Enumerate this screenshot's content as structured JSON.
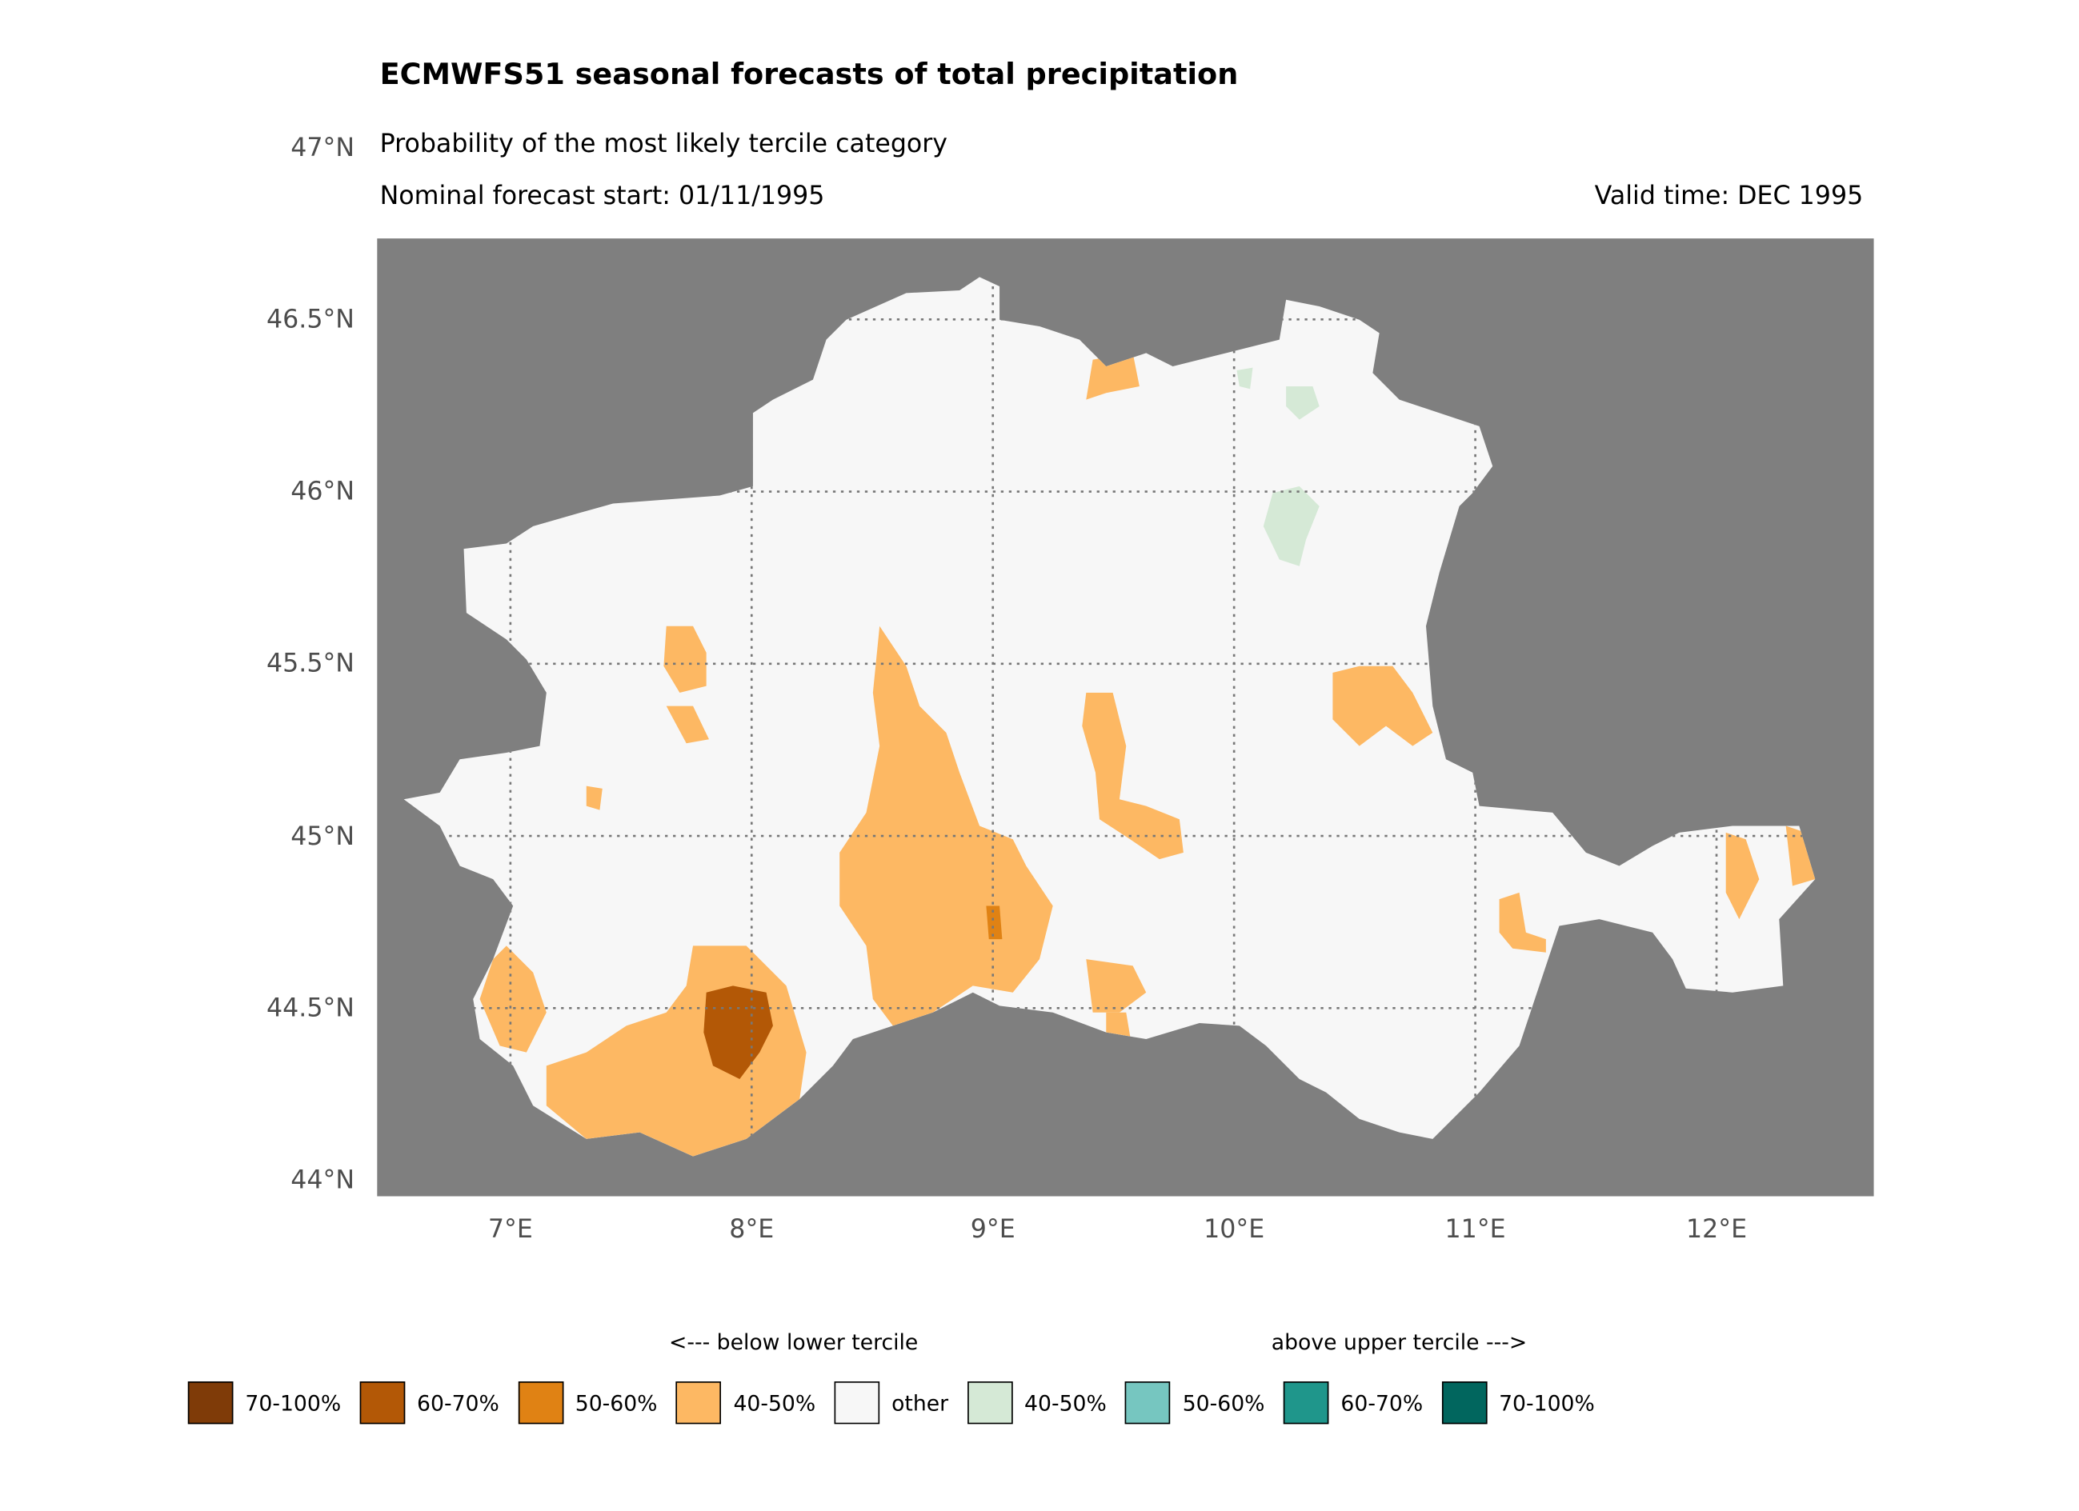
{
  "title": "ECMWFS51 seasonal forecasts of total precipitation",
  "subtitle": "Probability of the most likely tercile category",
  "forecast_start": "Nominal forecast start: 01/11/1995",
  "valid_time": "Valid time: DEC 1995",
  "axes": {
    "lat_ticks": [
      "47°N",
      "46.5°N",
      "46°N",
      "45.5°N",
      "45°N",
      "44.5°N",
      "44°N"
    ],
    "lon_ticks": [
      "7°E",
      "8°E",
      "9°E",
      "10°E",
      "11°E",
      "12°E"
    ]
  },
  "colors": {
    "ocean_mask": "#7f7f7f",
    "other": "#f7f7f7",
    "below_40_50": "#fdb863",
    "below_50_60": "#e08214",
    "below_60_70": "#b35806",
    "below_70_100": "#7f3b08",
    "above_40_50": "#d5e9d6",
    "above_50_60": "#76c6c0",
    "above_60_70": "#1f968b",
    "above_70_100": "#01665e"
  },
  "legend": {
    "below_label": "<--- below lower tercile",
    "above_label": "above upper tercile --->",
    "items": [
      {
        "label": "70-100%",
        "color": "#7f3b08"
      },
      {
        "label": "60-70%",
        "color": "#b35806"
      },
      {
        "label": "50-60%",
        "color": "#e08214"
      },
      {
        "label": "40-50%",
        "color": "#fdb863"
      },
      {
        "label": "other",
        "color": "#f7f7f7"
      },
      {
        "label": "40-50%",
        "color": "#d5e9d6"
      },
      {
        "label": "50-60%",
        "color": "#76c6c0"
      },
      {
        "label": "60-70%",
        "color": "#1f968b"
      },
      {
        "label": "70-100%",
        "color": "#01665e"
      }
    ]
  }
}
